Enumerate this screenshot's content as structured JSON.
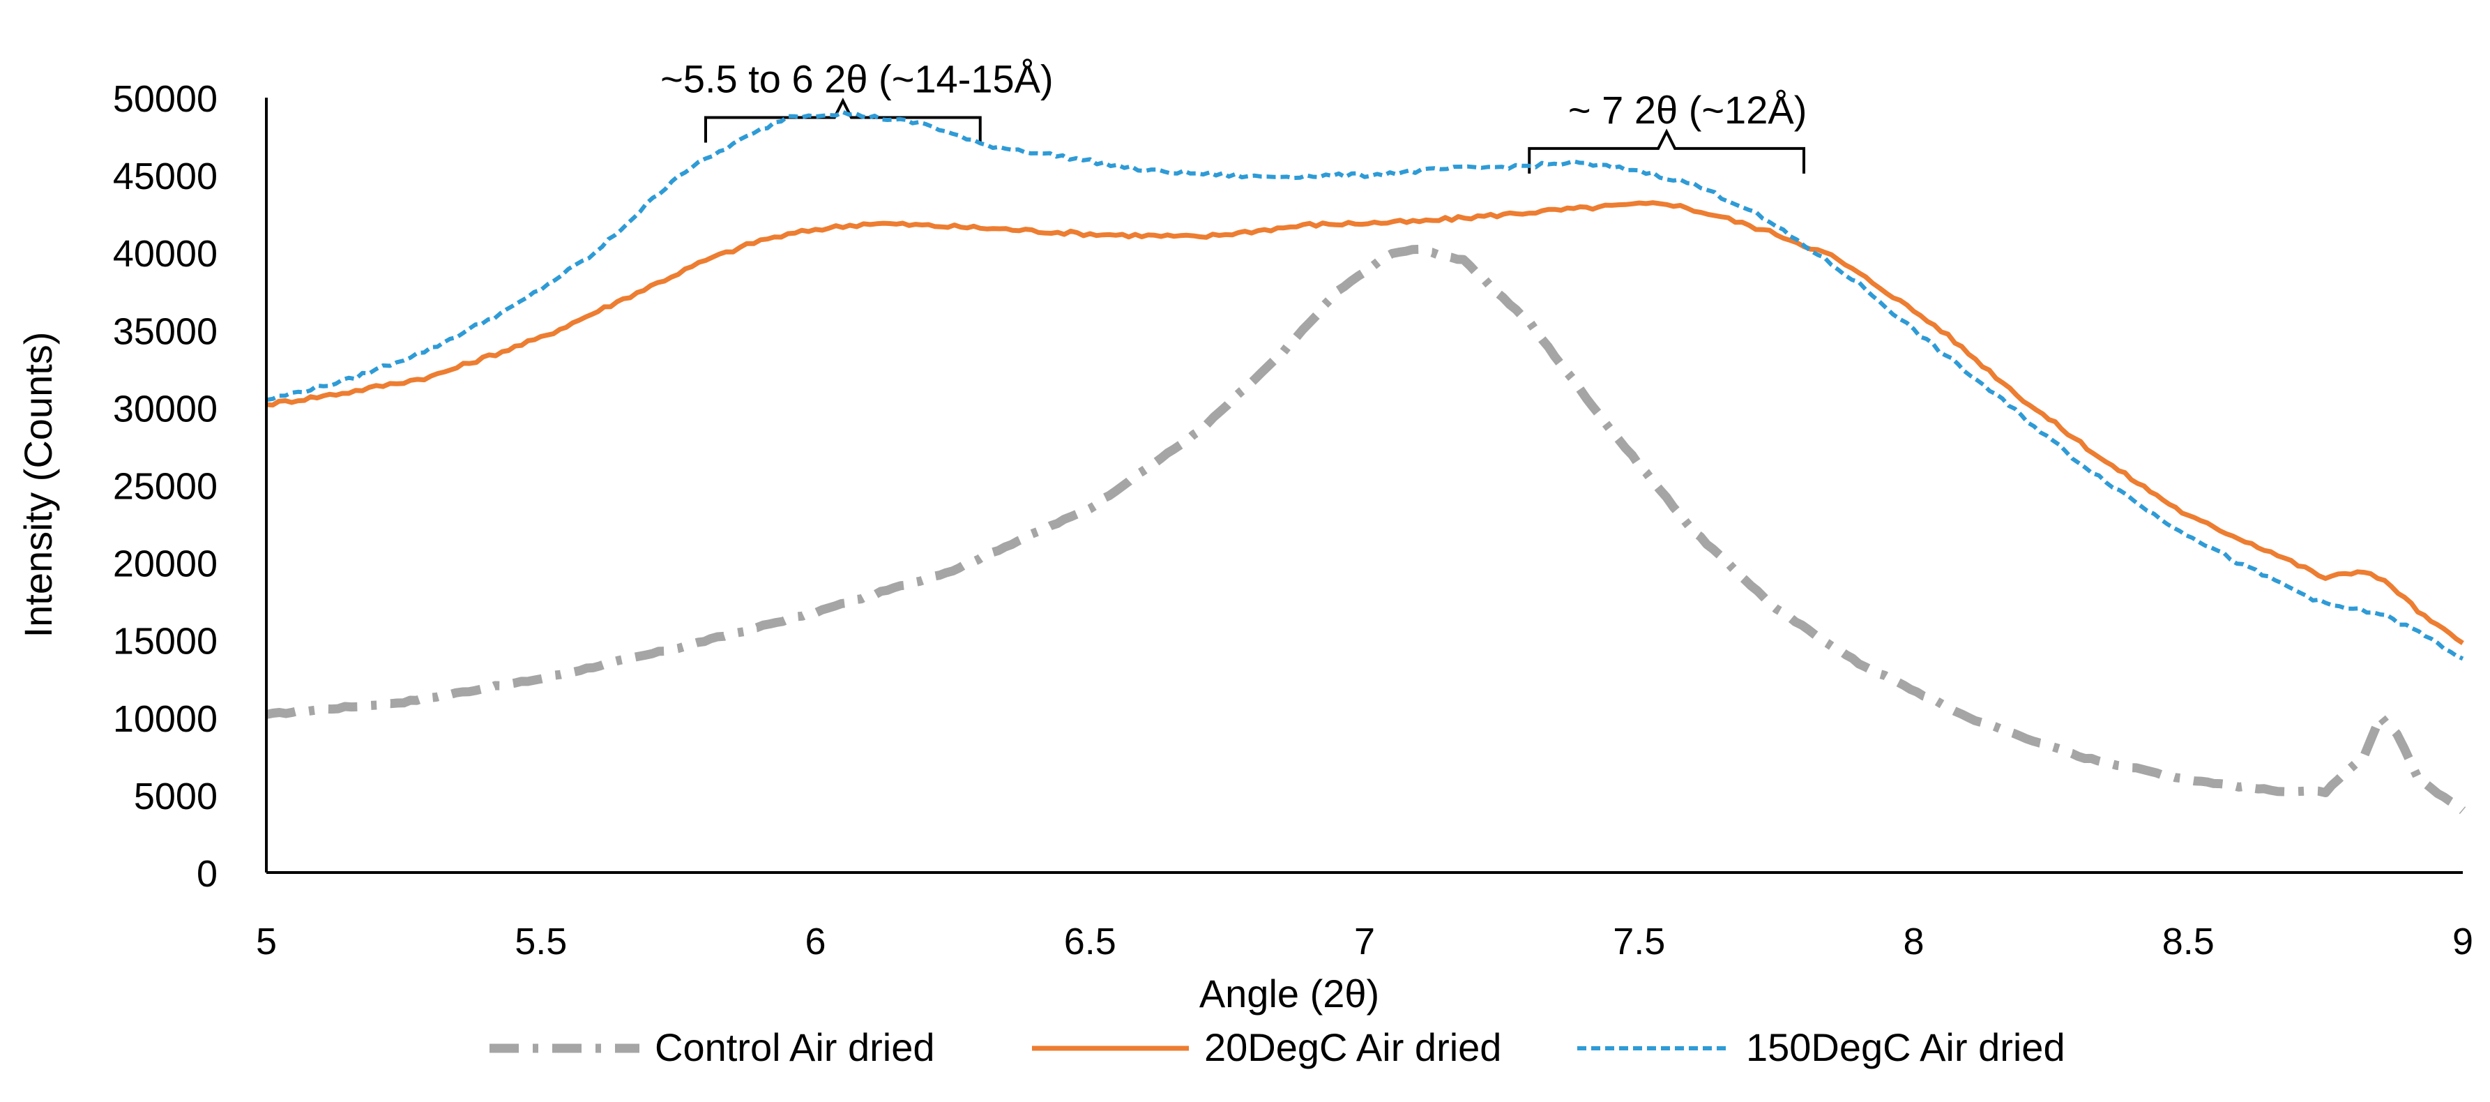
{
  "chart_data": {
    "type": "line",
    "title": "",
    "xlabel": "Angle (2θ)",
    "ylabel": "Intensity (Counts)",
    "xlim": [
      5,
      9
    ],
    "ylim": [
      0,
      50000
    ],
    "x_ticks": [
      5,
      5.5,
      6,
      6.5,
      7,
      7.5,
      8,
      8.5,
      9
    ],
    "x_tick_labels": [
      "5",
      "5.5",
      "6",
      "6.5",
      "7",
      "7.5",
      "8",
      "8.5",
      "9"
    ],
    "y_ticks": [
      0,
      5000,
      10000,
      15000,
      20000,
      25000,
      30000,
      35000,
      40000,
      45000,
      50000
    ],
    "y_tick_labels": [
      "0",
      "5000",
      "10000",
      "15000",
      "20000",
      "25000",
      "30000",
      "35000",
      "40000",
      "45000",
      "50000"
    ],
    "grid": false,
    "legend_position": "bottom",
    "series": [
      {
        "name": "Control Air dried",
        "color": "#A5A5A5",
        "style": "dash-dot",
        "points": [
          [
            5.0,
            10200
          ],
          [
            5.25,
            11000
          ],
          [
            5.5,
            12500
          ],
          [
            5.75,
            14500
          ],
          [
            6.0,
            16800
          ],
          [
            6.25,
            19500
          ],
          [
            6.5,
            23500
          ],
          [
            6.7,
            28500
          ],
          [
            6.85,
            33500
          ],
          [
            6.95,
            37500
          ],
          [
            7.05,
            40000
          ],
          [
            7.1,
            40200
          ],
          [
            7.18,
            39500
          ],
          [
            7.3,
            35500
          ],
          [
            7.45,
            28500
          ],
          [
            7.6,
            22000
          ],
          [
            7.75,
            17000
          ],
          [
            7.9,
            13500
          ],
          [
            8.1,
            10000
          ],
          [
            8.3,
            7500
          ],
          [
            8.5,
            6000
          ],
          [
            8.65,
            5300
          ],
          [
            8.75,
            5200
          ],
          [
            8.82,
            7500
          ],
          [
            8.85,
            10000
          ],
          [
            8.88,
            9000
          ],
          [
            8.92,
            6000
          ],
          [
            9.0,
            4000
          ]
        ]
      },
      {
        "name": "20DegC Air dried",
        "color": "#ED7D31",
        "style": "solid",
        "points": [
          [
            5.0,
            30200
          ],
          [
            5.15,
            31000
          ],
          [
            5.3,
            32000
          ],
          [
            5.5,
            34500
          ],
          [
            5.65,
            37000
          ],
          [
            5.8,
            39500
          ],
          [
            5.9,
            40800
          ],
          [
            6.0,
            41500
          ],
          [
            6.1,
            41900
          ],
          [
            6.3,
            41600
          ],
          [
            6.5,
            41200
          ],
          [
            6.7,
            41000
          ],
          [
            6.9,
            41800
          ],
          [
            7.1,
            42000
          ],
          [
            7.3,
            42600
          ],
          [
            7.45,
            43000
          ],
          [
            7.55,
            43200
          ],
          [
            7.65,
            42300
          ],
          [
            7.75,
            41200
          ],
          [
            7.85,
            39800
          ],
          [
            7.95,
            37500
          ],
          [
            8.05,
            35000
          ],
          [
            8.2,
            30500
          ],
          [
            8.35,
            26500
          ],
          [
            8.5,
            23000
          ],
          [
            8.65,
            20700
          ],
          [
            8.75,
            19000
          ],
          [
            8.82,
            19500
          ],
          [
            8.87,
            18500
          ],
          [
            8.93,
            16500
          ],
          [
            9.0,
            14800
          ]
        ]
      },
      {
        "name": "150DegC Air dried",
        "color": "#2E9BD6",
        "style": "dash",
        "points": [
          [
            5.0,
            30500
          ],
          [
            5.15,
            31800
          ],
          [
            5.3,
            33800
          ],
          [
            5.45,
            36500
          ],
          [
            5.6,
            40000
          ],
          [
            5.75,
            45000
          ],
          [
            5.85,
            47000
          ],
          [
            5.95,
            48800
          ],
          [
            6.05,
            49000
          ],
          [
            6.2,
            48300
          ],
          [
            6.3,
            47000
          ],
          [
            6.45,
            46200
          ],
          [
            6.6,
            45300
          ],
          [
            6.8,
            44900
          ],
          [
            7.0,
            45000
          ],
          [
            7.15,
            45400
          ],
          [
            7.3,
            45600
          ],
          [
            7.38,
            45800
          ],
          [
            7.5,
            45300
          ],
          [
            7.6,
            44400
          ],
          [
            7.7,
            42800
          ],
          [
            7.8,
            40500
          ],
          [
            7.9,
            38000
          ],
          [
            8.0,
            35000
          ],
          [
            8.15,
            30800
          ],
          [
            8.3,
            26500
          ],
          [
            8.45,
            22800
          ],
          [
            8.6,
            19800
          ],
          [
            8.75,
            17300
          ],
          [
            8.85,
            16700
          ],
          [
            8.92,
            15500
          ],
          [
            9.0,
            13800
          ]
        ]
      }
    ],
    "annotations": [
      {
        "label": "~5.5 to 6 2θ (~14-15Å)",
        "x_start": 5.8,
        "x_end": 6.3,
        "y": 48000
      },
      {
        "label": "~ 7 2θ (~12Å)",
        "x_start": 7.3,
        "x_end": 7.8,
        "y": 46000
      }
    ]
  }
}
